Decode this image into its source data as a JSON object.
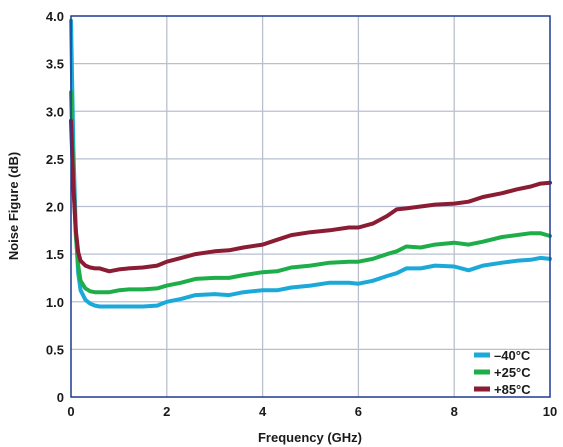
{
  "chart_data": {
    "type": "line",
    "xlabel": "Frequency (GHz)",
    "ylabel": "Noise Figure (dB)",
    "xlim": [
      0,
      10
    ],
    "ylim": [
      0,
      4.0
    ],
    "x_ticks": [
      "0",
      "2",
      "4",
      "6",
      "8",
      "10"
    ],
    "y_ticks": [
      "0",
      "0.5",
      "1.0",
      "1.5",
      "2.0",
      "2.5",
      "3.0",
      "3.5",
      "4.0"
    ],
    "grid": true,
    "legend_position": "bottom-right",
    "series": [
      {
        "name": "–40°C",
        "color": "#1ba9d9",
        "x": [
          0.0,
          0.05,
          0.1,
          0.15,
          0.2,
          0.3,
          0.4,
          0.5,
          0.6,
          0.8,
          1.0,
          1.2,
          1.5,
          1.8,
          2.0,
          2.3,
          2.6,
          3.0,
          3.3,
          3.6,
          4.0,
          4.3,
          4.6,
          5.0,
          5.4,
          5.8,
          6.0,
          6.3,
          6.6,
          6.8,
          7.0,
          7.3,
          7.6,
          8.0,
          8.3,
          8.6,
          9.0,
          9.3,
          9.6,
          9.8,
          10.0
        ],
        "y": [
          3.95,
          2.6,
          1.75,
          1.3,
          1.12,
          1.02,
          0.98,
          0.96,
          0.95,
          0.95,
          0.95,
          0.95,
          0.95,
          0.96,
          1.0,
          1.03,
          1.07,
          1.08,
          1.07,
          1.1,
          1.12,
          1.12,
          1.15,
          1.17,
          1.2,
          1.2,
          1.19,
          1.22,
          1.27,
          1.3,
          1.35,
          1.35,
          1.38,
          1.37,
          1.33,
          1.38,
          1.41,
          1.43,
          1.44,
          1.46,
          1.45
        ]
      },
      {
        "name": "+25°C",
        "color": "#1eae49",
        "x": [
          0.0,
          0.05,
          0.1,
          0.15,
          0.2,
          0.3,
          0.4,
          0.5,
          0.6,
          0.8,
          1.0,
          1.2,
          1.5,
          1.8,
          2.0,
          2.3,
          2.6,
          3.0,
          3.3,
          3.6,
          4.0,
          4.3,
          4.6,
          5.0,
          5.4,
          5.8,
          6.0,
          6.3,
          6.6,
          6.8,
          7.0,
          7.3,
          7.6,
          8.0,
          8.3,
          8.6,
          9.0,
          9.3,
          9.6,
          9.8,
          10.0
        ],
        "y": [
          3.2,
          2.3,
          1.7,
          1.38,
          1.22,
          1.14,
          1.11,
          1.1,
          1.1,
          1.1,
          1.12,
          1.13,
          1.13,
          1.14,
          1.17,
          1.2,
          1.24,
          1.25,
          1.25,
          1.28,
          1.31,
          1.32,
          1.36,
          1.38,
          1.41,
          1.42,
          1.42,
          1.45,
          1.5,
          1.53,
          1.58,
          1.57,
          1.6,
          1.62,
          1.6,
          1.63,
          1.68,
          1.7,
          1.72,
          1.72,
          1.69
        ]
      },
      {
        "name": "+85°C",
        "color": "#8a1c33",
        "x": [
          0.0,
          0.05,
          0.1,
          0.15,
          0.2,
          0.3,
          0.4,
          0.5,
          0.6,
          0.8,
          1.0,
          1.2,
          1.5,
          1.8,
          2.0,
          2.3,
          2.6,
          3.0,
          3.3,
          3.6,
          4.0,
          4.3,
          4.6,
          5.0,
          5.4,
          5.8,
          6.0,
          6.3,
          6.6,
          6.8,
          7.0,
          7.3,
          7.6,
          8.0,
          8.3,
          8.6,
          9.0,
          9.3,
          9.6,
          9.8,
          10.0
        ],
        "y": [
          2.9,
          2.2,
          1.75,
          1.52,
          1.43,
          1.38,
          1.36,
          1.35,
          1.35,
          1.32,
          1.34,
          1.35,
          1.36,
          1.38,
          1.42,
          1.46,
          1.5,
          1.53,
          1.54,
          1.57,
          1.6,
          1.65,
          1.7,
          1.73,
          1.75,
          1.78,
          1.78,
          1.82,
          1.9,
          1.97,
          1.98,
          2.0,
          2.02,
          2.03,
          2.05,
          2.1,
          2.14,
          2.18,
          2.21,
          2.24,
          2.25
        ]
      }
    ]
  }
}
